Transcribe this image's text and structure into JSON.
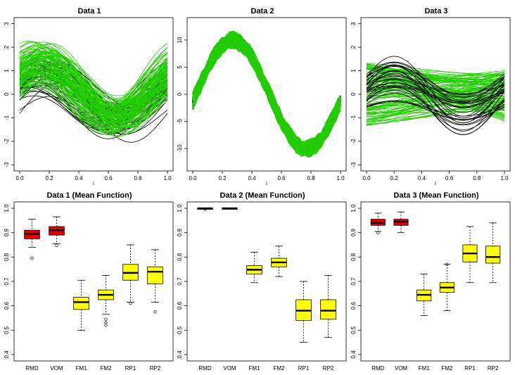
{
  "colors": {
    "red": "#e60000",
    "yellow": "#ffff00",
    "green": "#22cc00",
    "black": "#000000"
  },
  "chart_data": [
    {
      "type": "line",
      "title": "Data 1",
      "xlabel": "t",
      "xlim": [
        0,
        1
      ],
      "ylim": [
        -3,
        3
      ],
      "xticks": [
        0.0,
        0.2,
        0.4,
        0.6,
        0.8,
        1.0
      ],
      "xtick_labels": [
        "0.0",
        "0.2",
        "0.4",
        "0.6",
        "0.8",
        "1.0"
      ],
      "yticks": [
        -3,
        -2,
        -1,
        0,
        1,
        2,
        3
      ],
      "ytick_labels": [
        "-3",
        "-2",
        "-1",
        "0",
        "1",
        "2",
        "3"
      ],
      "series": [
        {
          "color": "#000000",
          "shape": "sine",
          "offsets": [
            -0.9,
            -0.7,
            -0.5,
            -0.3,
            -0.1,
            0.1,
            0.3,
            0.5
          ],
          "amplitude": [
            0.7,
            1.2
          ]
        },
        {
          "color": "#22cc00",
          "shape": "sine",
          "offsets": [
            -0.4,
            -0.2,
            0.0,
            0.2,
            0.4,
            0.6,
            0.8,
            1.0
          ],
          "amplitude": [
            0.9,
            1.4
          ]
        }
      ]
    },
    {
      "type": "line",
      "title": "Data 2",
      "xlabel": "t",
      "xlim": [
        0,
        1
      ],
      "ylim": [
        -13,
        13
      ],
      "xticks": [
        0.0,
        0.2,
        0.4,
        0.6,
        0.8,
        1.0
      ],
      "xtick_labels": [
        "0.0",
        "0.2",
        "0.4",
        "0.6",
        "0.8",
        "1.0"
      ],
      "yticks": [
        -10,
        -5,
        0,
        5,
        10
      ],
      "ytick_labels": [
        "-10",
        "-5",
        "0",
        "5",
        "10"
      ],
      "series": [
        {
          "color": "#000000",
          "shape": "wobbly-sine",
          "amplitude": 10
        },
        {
          "color": "#22cc00",
          "shape": "wobbly-sine",
          "amplitude": 10
        }
      ]
    },
    {
      "type": "line",
      "title": "Data 3",
      "xlabel": "t",
      "xlim": [
        0,
        1
      ],
      "ylim": [
        -3,
        3
      ],
      "xticks": [
        0.0,
        0.2,
        0.4,
        0.6,
        0.8,
        1.0
      ],
      "xtick_labels": [
        "0.0",
        "0.2",
        "0.4",
        "0.6",
        "0.8",
        "1.0"
      ],
      "yticks": [
        -3,
        -2,
        -1,
        0,
        1,
        2,
        3
      ],
      "ytick_labels": [
        "-3",
        "-2",
        "-1",
        "0",
        "1",
        "2",
        "3"
      ],
      "series": [
        {
          "color": "#000000",
          "shape": "sine",
          "range": [
            -1.9,
            1.6
          ]
        },
        {
          "color": "#22cc00",
          "shape": "flat-noise",
          "range": [
            -2.0,
            2.0
          ]
        }
      ]
    },
    {
      "type": "box",
      "title": "Data 1 (Mean Function)",
      "ylim": [
        0.4,
        1.0
      ],
      "yticks": [
        0.4,
        0.5,
        0.6,
        0.7,
        0.8,
        0.9,
        1.0
      ],
      "ytick_labels": [
        "0.4",
        "0.5",
        "0.6",
        "0.7",
        "0.8",
        "0.9",
        "1.0"
      ],
      "categories": [
        "RMD",
        "VOM",
        "FM1",
        "FM2",
        "RP1",
        "RP2"
      ],
      "boxes": [
        {
          "label": "RMD",
          "color": "#e60000",
          "min": 0.84,
          "q1": 0.875,
          "median": 0.895,
          "q3": 0.91,
          "max": 0.955,
          "outliers": [
            0.795
          ]
        },
        {
          "label": "VOM",
          "color": "#e60000",
          "min": 0.855,
          "q1": 0.89,
          "median": 0.91,
          "q3": 0.925,
          "max": 0.965,
          "outliers": [
            0.848
          ]
        },
        {
          "label": "FM1",
          "color": "#ffff00",
          "min": 0.5,
          "q1": 0.585,
          "median": 0.615,
          "q3": 0.635,
          "max": 0.705,
          "outliers": []
        },
        {
          "label": "FM2",
          "color": "#ffff00",
          "min": 0.565,
          "q1": 0.625,
          "median": 0.645,
          "q3": 0.665,
          "max": 0.725,
          "outliers": [
            0.545,
            0.53,
            0.52
          ]
        },
        {
          "label": "RP1",
          "color": "#ffff00",
          "min": 0.615,
          "q1": 0.705,
          "median": 0.735,
          "q3": 0.77,
          "max": 0.85,
          "outliers": [
            0.61
          ]
        },
        {
          "label": "RP2",
          "color": "#ffff00",
          "min": 0.615,
          "q1": 0.69,
          "median": 0.74,
          "q3": 0.76,
          "max": 0.83,
          "outliers": [
            0.575
          ]
        }
      ]
    },
    {
      "type": "box",
      "title": "Data 2 (Mean Function)",
      "ylim": [
        0.4,
        1.0
      ],
      "yticks": [
        0.4,
        0.5,
        0.6,
        0.7,
        0.8,
        0.9,
        1.0
      ],
      "ytick_labels": [
        "0.4",
        "0.5",
        "0.6",
        "0.7",
        "0.8",
        "0.9",
        "1.0"
      ],
      "categories": [
        "RMD",
        "VOM",
        "FM1",
        "FM2",
        "RP1",
        "RP2"
      ],
      "boxes": [
        {
          "label": "RMD",
          "color": "#e60000",
          "min": 1.0,
          "q1": 1.0,
          "median": 1.0,
          "q3": 1.0,
          "max": 1.0,
          "outliers": [
            0.996
          ]
        },
        {
          "label": "VOM",
          "color": "#e60000",
          "min": 1.0,
          "q1": 1.0,
          "median": 1.0,
          "q3": 1.0,
          "max": 1.0,
          "outliers": []
        },
        {
          "label": "FM1",
          "color": "#ffff00",
          "min": 0.695,
          "q1": 0.73,
          "median": 0.748,
          "q3": 0.765,
          "max": 0.82,
          "outliers": []
        },
        {
          "label": "FM2",
          "color": "#ffff00",
          "min": 0.72,
          "q1": 0.76,
          "median": 0.778,
          "q3": 0.795,
          "max": 0.845,
          "outliers": []
        },
        {
          "label": "RP1",
          "color": "#ffff00",
          "min": 0.45,
          "q1": 0.54,
          "median": 0.58,
          "q3": 0.625,
          "max": 0.7,
          "outliers": []
        },
        {
          "label": "RP2",
          "color": "#ffff00",
          "min": 0.47,
          "q1": 0.545,
          "median": 0.58,
          "q3": 0.625,
          "max": 0.725,
          "outliers": []
        }
      ]
    },
    {
      "type": "box",
      "title": "Data 3 (Mean Function)",
      "ylim": [
        0.4,
        1.0
      ],
      "yticks": [
        0.4,
        0.5,
        0.6,
        0.7,
        0.8,
        0.9,
        1.0
      ],
      "ytick_labels": [
        "0.4",
        "0.5",
        "0.6",
        "0.7",
        "0.8",
        "0.9",
        "1.0"
      ],
      "categories": [
        "RMD",
        "VOM",
        "FM1",
        "FM2",
        "RP1",
        "RP2"
      ],
      "boxes": [
        {
          "label": "RMD",
          "color": "#e60000",
          "min": 0.905,
          "q1": 0.93,
          "median": 0.94,
          "q3": 0.955,
          "max": 0.98,
          "outliers": [
            0.9
          ]
        },
        {
          "label": "VOM",
          "color": "#e60000",
          "min": 0.9,
          "q1": 0.93,
          "median": 0.945,
          "q3": 0.955,
          "max": 0.985,
          "outliers": []
        },
        {
          "label": "FM1",
          "color": "#ffff00",
          "min": 0.56,
          "q1": 0.62,
          "median": 0.645,
          "q3": 0.665,
          "max": 0.73,
          "outliers": []
        },
        {
          "label": "FM2",
          "color": "#ffff00",
          "min": 0.58,
          "q1": 0.655,
          "median": 0.675,
          "q3": 0.695,
          "max": 0.77,
          "outliers": [
            0.77
          ]
        },
        {
          "label": "RP1",
          "color": "#ffff00",
          "min": 0.695,
          "q1": 0.78,
          "median": 0.815,
          "q3": 0.85,
          "max": 0.925,
          "outliers": []
        },
        {
          "label": "RP2",
          "color": "#ffff00",
          "min": 0.695,
          "q1": 0.775,
          "median": 0.8,
          "q3": 0.845,
          "max": 0.94,
          "outliers": []
        }
      ]
    }
  ]
}
